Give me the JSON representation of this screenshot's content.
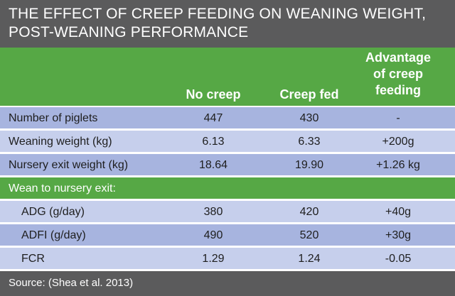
{
  "title": {
    "line1": "THE EFFECT OF CREEP FEEDING ON WEANING WEIGHT,",
    "line2": "POST-WEANING PERFORMANCE"
  },
  "columns": {
    "no_creep": "No creep",
    "creep_fed": "Creep fed",
    "advantage": [
      "Advantage",
      "of creep",
      "feeding"
    ]
  },
  "rows": [
    {
      "label": "Number of piglets",
      "no_creep": "447",
      "creep_fed": "430",
      "advantage": "-"
    },
    {
      "label": "Weaning weight (kg)",
      "no_creep": "6.13",
      "creep_fed": "6.33",
      "advantage": "+200g"
    },
    {
      "label": "Nursery exit weight (kg)",
      "no_creep": "18.64",
      "creep_fed": "19.90",
      "advantage": "+1.26 kg"
    }
  ],
  "section_label": "Wean to nursery exit:",
  "sub_rows": [
    {
      "label": "ADG (g/day)",
      "no_creep": "380",
      "creep_fed": "420",
      "advantage": "+40g"
    },
    {
      "label": "ADFI (g/day)",
      "no_creep": "490",
      "creep_fed": "520",
      "advantage": "+30g"
    },
    {
      "label": "FCR",
      "no_creep": "1.29",
      "creep_fed": "1.24",
      "advantage": "-0.05"
    }
  ],
  "source": "Source: (Shea et al. 2013)",
  "colors": {
    "header_gray": "#5b5b5c",
    "green": "#56a845",
    "row_dark": "#a7b4df",
    "row_light": "#c6cfec"
  }
}
